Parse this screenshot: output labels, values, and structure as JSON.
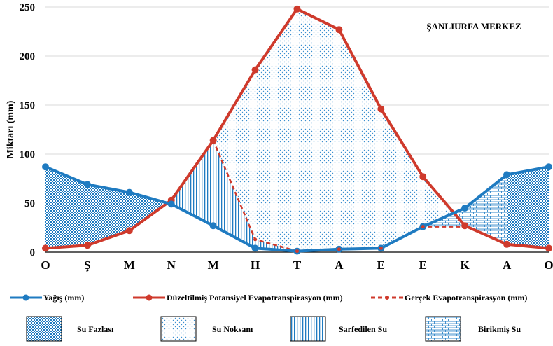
{
  "chart_data": {
    "type": "line",
    "title": "ŞANLIURFA MERKEZ",
    "xlabel": "",
    "ylabel": "Miktarı (mm)",
    "ylim": [
      0,
      250
    ],
    "yticks": [
      0,
      50,
      100,
      150,
      200,
      250
    ],
    "categories": [
      "O",
      "Ş",
      "M",
      "N",
      "M",
      "H",
      "T",
      "A",
      "E",
      "E",
      "K",
      "A",
      "O"
    ],
    "series": [
      {
        "name": "Yağış (mm)",
        "color": "#1f7bc1",
        "style": "solid",
        "values": [
          87,
          69,
          61,
          49,
          27,
          4,
          1,
          3,
          4,
          26,
          45,
          79,
          87
        ]
      },
      {
        "name": "Düzeltilmiş Potansiyel Evapotranspirasyon (mm)",
        "color": "#cf3a2c",
        "style": "solid",
        "values": [
          4,
          7,
          22,
          53,
          114,
          186,
          248,
          227,
          146,
          77,
          27,
          8,
          4
        ]
      },
      {
        "name": "Gerçek Evapotranspirasyon (mm)",
        "color": "#cf3a2c",
        "style": "dashed",
        "values": [
          null,
          null,
          null,
          null,
          114,
          13,
          1,
          3,
          4,
          26,
          26,
          null,
          null
        ]
      }
    ],
    "regions": [
      {
        "label": "Su Fazlası",
        "pattern": "dense-dots"
      },
      {
        "label": "Su Noksanı",
        "pattern": "sparse-dots"
      },
      {
        "label": "Sarfedilen Su",
        "pattern": "vertical-lines"
      },
      {
        "label": "Birikmiş Su",
        "pattern": "bricks"
      }
    ],
    "grid": "horizontal"
  }
}
